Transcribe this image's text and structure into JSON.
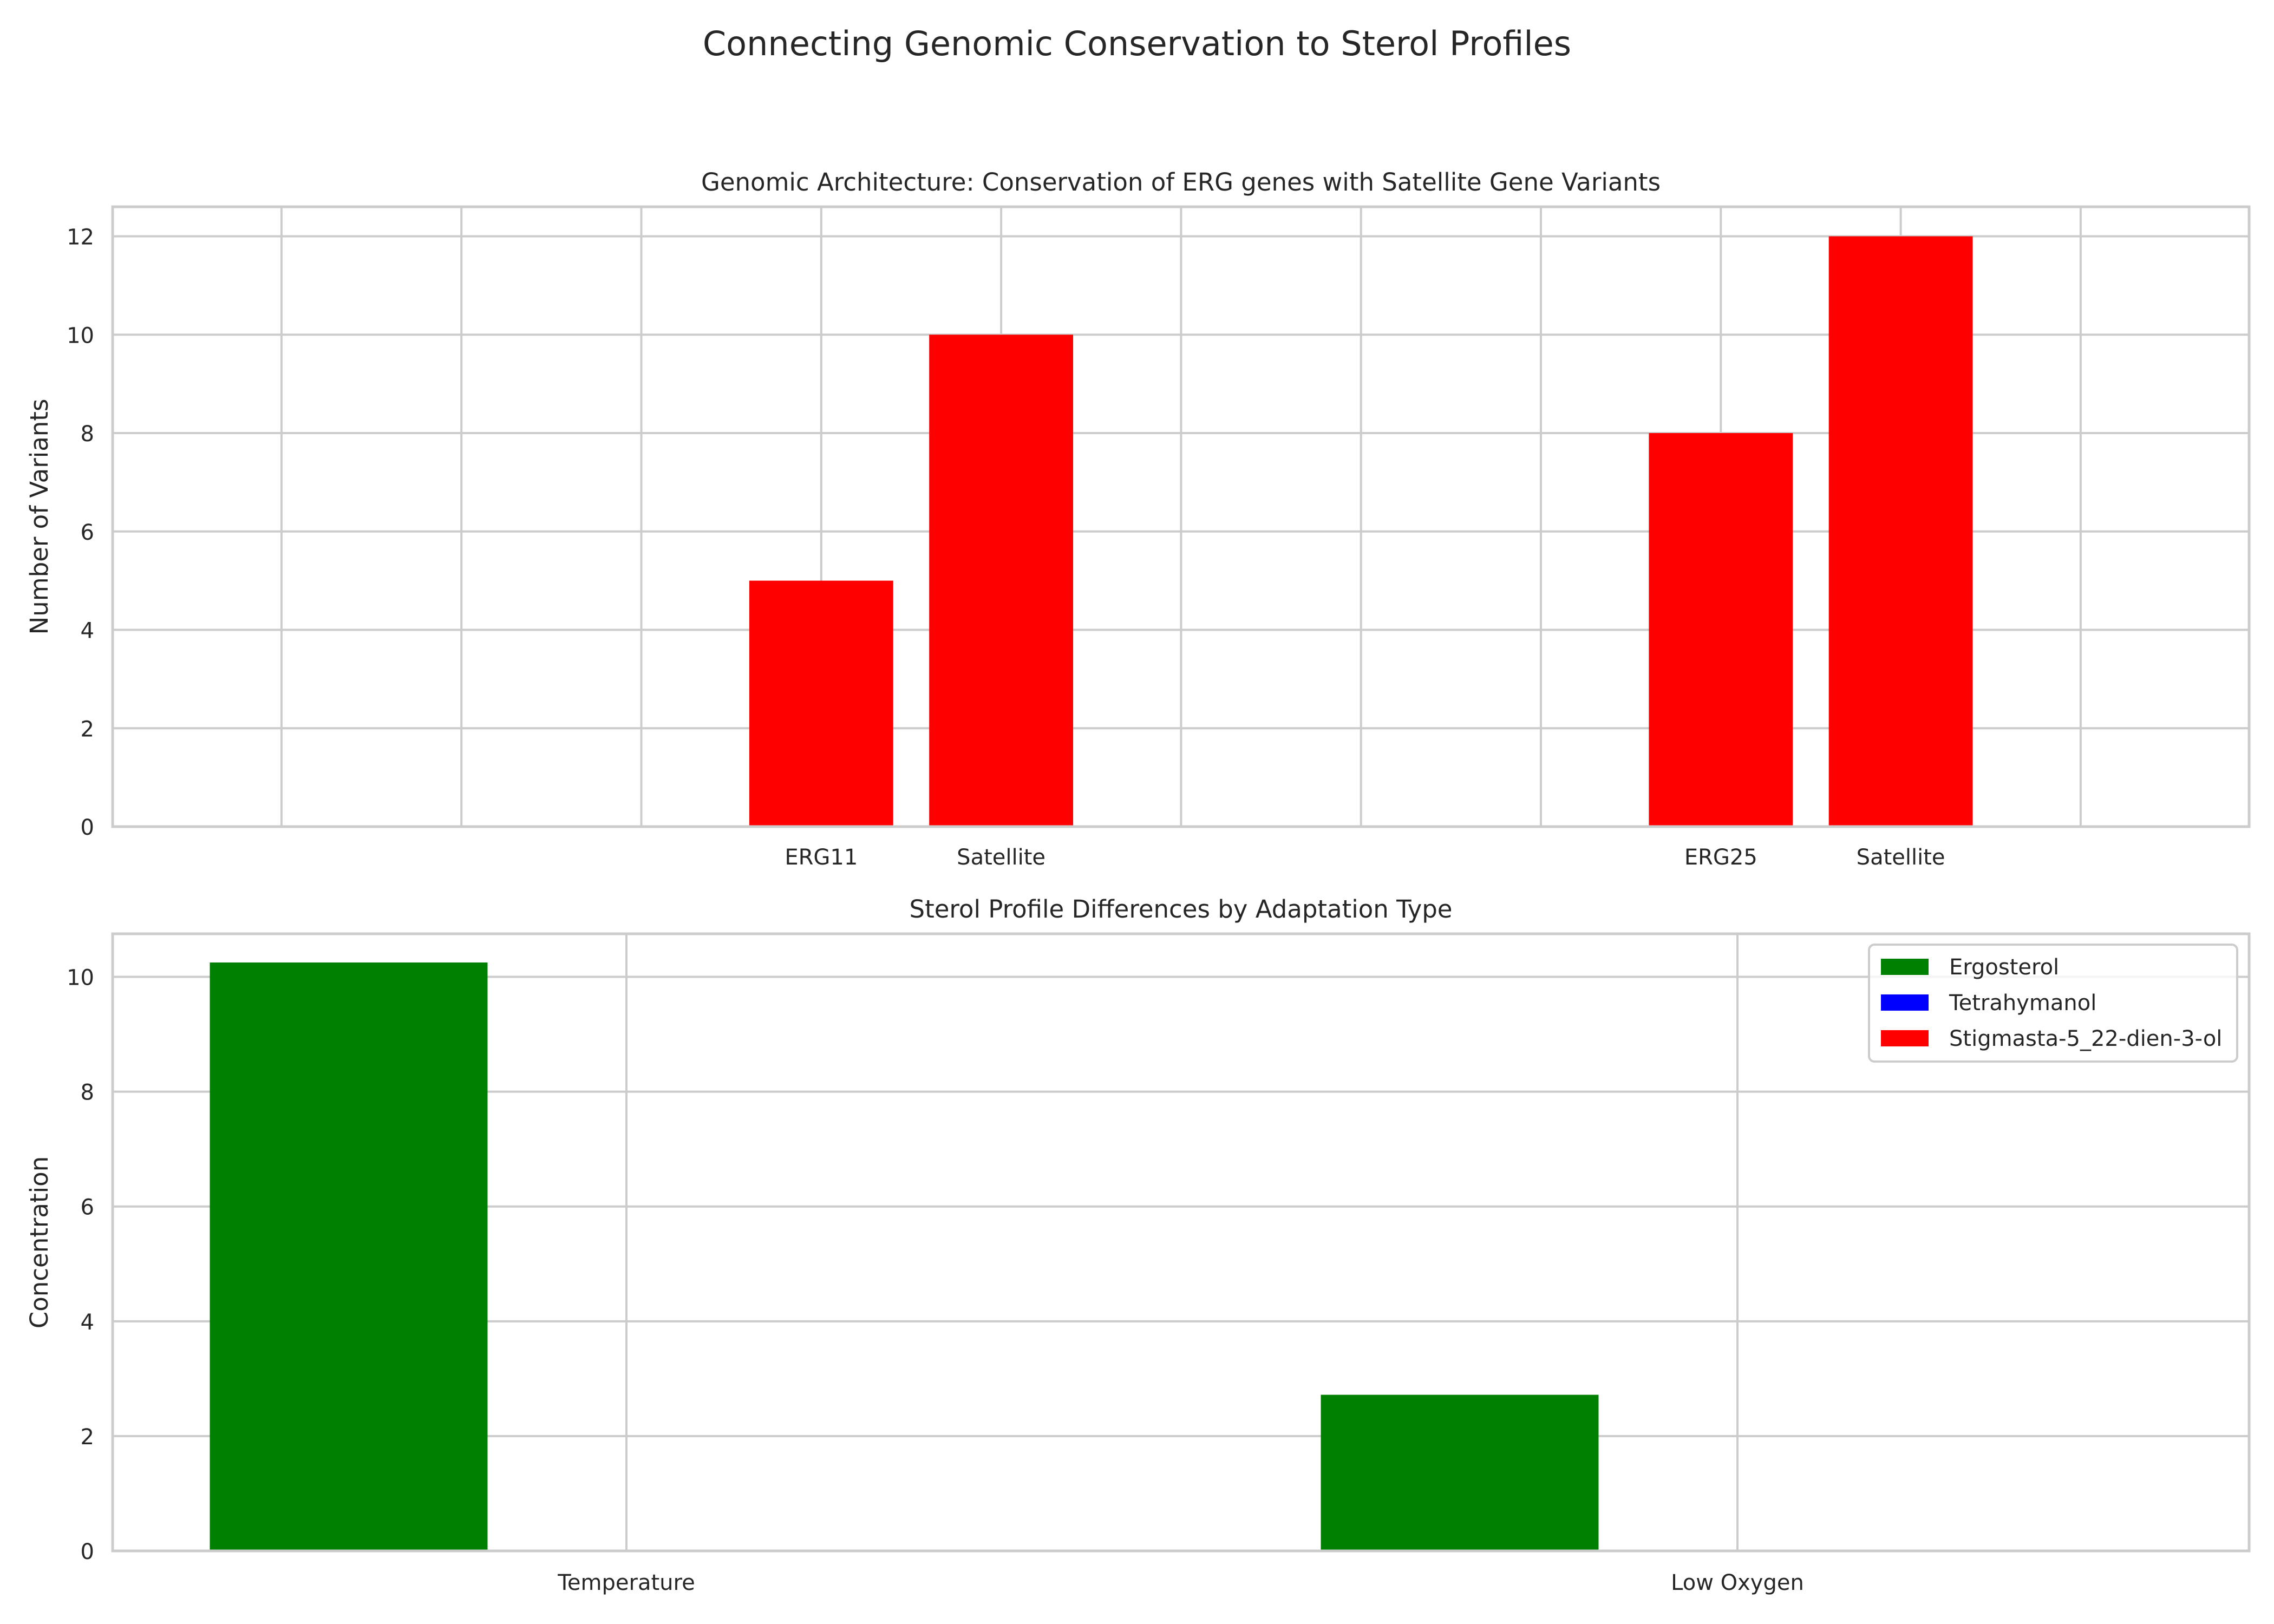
{
  "figure": {
    "title": "Connecting Genomic Conservation to Sterol Profiles"
  },
  "chart_data": [
    {
      "type": "bar",
      "title": "Genomic Architecture: Conservation of ERG genes with Satellite Gene Variants",
      "xlabel": "",
      "ylabel": "Number of Variants",
      "ylim": [
        0,
        12.6
      ],
      "yticks": [
        0,
        2,
        4,
        6,
        8,
        10,
        12
      ],
      "grid": true,
      "color": "#ff0000",
      "bars": [
        {
          "label": "ERG11",
          "value": 5
        },
        {
          "label": "Satellite",
          "value": 10
        },
        {
          "label": "ERG25",
          "value": 8
        },
        {
          "label": "Satellite",
          "value": 12
        }
      ]
    },
    {
      "type": "bar",
      "title": "Sterol Profile Differences by Adaptation Type",
      "xlabel": "",
      "ylabel": "Concentration",
      "ylim": [
        0,
        10.75
      ],
      "yticks": [
        0,
        2,
        4,
        6,
        8,
        10
      ],
      "grid": true,
      "legend_position": "top-right",
      "categories": [
        "Temperature",
        "Low Oxygen"
      ],
      "series": [
        {
          "name": "Ergosterol",
          "color": "#008000",
          "values": [
            10.25,
            2.72
          ]
        },
        {
          "name": "Tetrahymanol",
          "color": "#0000ff",
          "values": [
            0,
            0
          ]
        },
        {
          "name": "Stigmasta-5_22-dien-3-ol",
          "color": "#ff0000",
          "values": [
            0,
            0
          ]
        }
      ]
    }
  ]
}
